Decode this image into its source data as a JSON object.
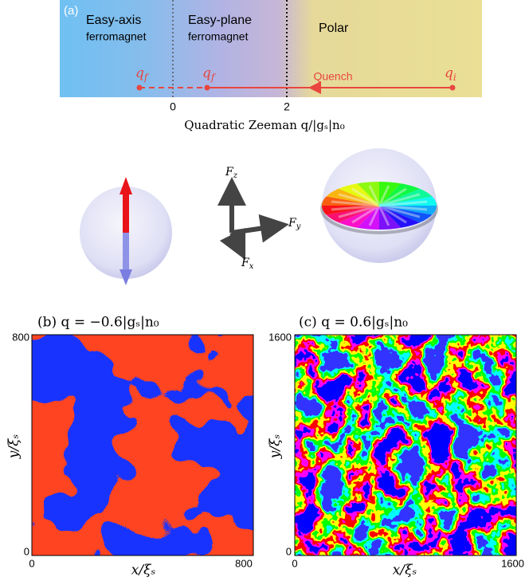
{
  "panel_a": {
    "label": "(a)",
    "regions": [
      {
        "lines": [
          "Easy-axis",
          "ferromagnet"
        ]
      },
      {
        "lines": [
          "Easy-plane",
          "ferromagnet"
        ]
      },
      {
        "lines": [
          "Polar"
        ]
      }
    ],
    "markers": [
      {
        "base": "q",
        "sub": "f"
      },
      {
        "base": "q",
        "sub": "f"
      },
      {
        "base": "q",
        "sub": "i"
      }
    ],
    "arrow_label": "Quench",
    "ticks": [
      "0",
      "2"
    ],
    "axis_label": "Quadratic Zeeman q/|gₛ|n₀"
  },
  "axes_labels": [
    {
      "base": "F",
      "sub": "z"
    },
    {
      "base": "F",
      "sub": "y"
    },
    {
      "base": "F",
      "sub": "x"
    }
  ],
  "panel_b": {
    "title": "(b) q = −0.6|gₛ|n₀",
    "y_ticks": [
      "800",
      "0"
    ],
    "x_ticks": [
      "0",
      "800"
    ],
    "x_label": "x/ξₛ",
    "y_label": "y/ξₛ"
  },
  "panel_c": {
    "title": "(c) q = 0.6|gₛ|n₀",
    "y_ticks": [
      "1600",
      "0"
    ],
    "x_ticks": [
      "0",
      "1600"
    ],
    "x_label": "x/ξₛ",
    "y_label": "y/ξₛ"
  }
}
